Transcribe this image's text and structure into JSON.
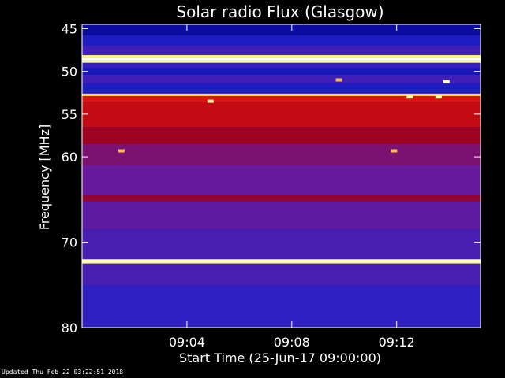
{
  "chart_data": {
    "type": "heatmap",
    "title": "Solar radio Flux (Glasgow)",
    "xlabel": "Start Time (25-Jun-17 09:00:00)",
    "ylabel": "Frequency [MHz]",
    "x_unit": "minutes after 09:00",
    "xlim": [
      0,
      15.2
    ],
    "ylim": [
      44.5,
      80
    ],
    "y_scale": "linear, frequency increasing downward",
    "x_ticks": [
      {
        "value": 4,
        "label": "09:04"
      },
      {
        "value": 8,
        "label": "09:08"
      },
      {
        "value": 12,
        "label": "09:12"
      }
    ],
    "y_ticks": [
      {
        "value": 45,
        "label": "45"
      },
      {
        "value": 50,
        "label": "50"
      },
      {
        "value": 55,
        "label": "55"
      },
      {
        "value": 60,
        "label": "60"
      },
      {
        "value": 70,
        "label": "70"
      },
      {
        "value": 80,
        "label": "80"
      }
    ],
    "colormap": [
      "#00008c",
      "#2222cc",
      "#6a1a9a",
      "#a00018",
      "#d81010",
      "#ff6000",
      "#ffff80",
      "#ffffff"
    ],
    "frequency_bands": [
      {
        "from": 44.5,
        "to": 45.8,
        "level": 0.05
      },
      {
        "from": 45.8,
        "to": 47.0,
        "level": 0.12
      },
      {
        "from": 47.0,
        "to": 48.1,
        "level": 0.2
      },
      {
        "from": 48.1,
        "to": 48.4,
        "level": 0.85
      },
      {
        "from": 48.4,
        "to": 48.7,
        "level": 1.0
      },
      {
        "from": 48.7,
        "to": 49.0,
        "level": 0.9
      },
      {
        "from": 49.0,
        "to": 49.6,
        "level": 0.18
      },
      {
        "from": 49.6,
        "to": 50.4,
        "level": 0.1
      },
      {
        "from": 50.4,
        "to": 51.4,
        "level": 0.2
      },
      {
        "from": 51.4,
        "to": 52.6,
        "level": 0.12
      },
      {
        "from": 52.6,
        "to": 52.9,
        "level": 0.82
      },
      {
        "from": 52.9,
        "to": 53.6,
        "level": 0.58
      },
      {
        "from": 53.6,
        "to": 56.5,
        "level": 0.52
      },
      {
        "from": 56.5,
        "to": 58.5,
        "level": 0.42
      },
      {
        "from": 58.5,
        "to": 61.0,
        "level": 0.33
      },
      {
        "from": 61.0,
        "to": 64.5,
        "level": 0.28
      },
      {
        "from": 64.5,
        "to": 65.2,
        "level": 0.4
      },
      {
        "from": 65.2,
        "to": 68.5,
        "level": 0.26
      },
      {
        "from": 68.5,
        "to": 72.0,
        "level": 0.22
      },
      {
        "from": 72.0,
        "to": 72.5,
        "level": 0.9
      },
      {
        "from": 72.5,
        "to": 75.0,
        "level": 0.22
      },
      {
        "from": 75.0,
        "to": 80.0,
        "level": 0.17
      }
    ],
    "hot_spots": [
      {
        "x": 1.5,
        "y": 59.3,
        "level": 0.8
      },
      {
        "x": 11.9,
        "y": 59.3,
        "level": 0.8
      },
      {
        "x": 9.8,
        "y": 51.0,
        "level": 0.8
      },
      {
        "x": 4.9,
        "y": 53.5,
        "level": 0.9
      },
      {
        "x": 12.5,
        "y": 53.0,
        "level": 0.9
      },
      {
        "x": 13.6,
        "y": 53.0,
        "level": 0.9
      },
      {
        "x": 13.9,
        "y": 51.2,
        "level": 0.9
      }
    ],
    "grid": false
  },
  "footer": {
    "updated": "Updated Thu Feb 22 03:22:51 2018"
  }
}
